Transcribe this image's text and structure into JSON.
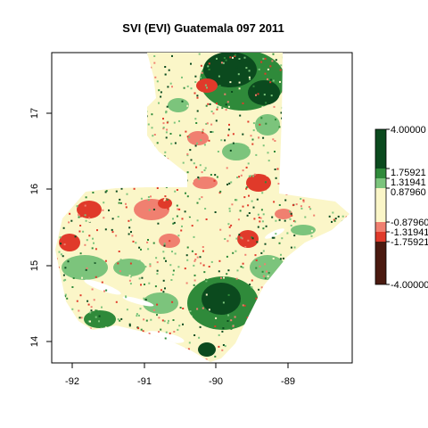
{
  "title": "SVI (EVI) Guatemala 097 2011",
  "map": {
    "x_ticks": [
      "-92",
      "-91",
      "-90",
      "-89"
    ],
    "y_ticks": [
      "14",
      "15",
      "16",
      "17"
    ],
    "x_range": [
      -92.25,
      -88.15
    ],
    "y_range": [
      13.75,
      17.82
    ]
  },
  "legend": {
    "labels": [
      "4.00000",
      "1.75921",
      "1.31941",
      "0.87960",
      "-0.87960",
      "-1.31941",
      "-1.75921",
      "-4.00000"
    ],
    "colors": {
      "dark_green": "#0b4a1e",
      "green": "#2f8a3a",
      "light_green": "#7cc47c",
      "pale_yellow": "#fbf6c8",
      "light_red": "#f08070",
      "red": "#e03a2a",
      "dark_red": "#4a1a10"
    }
  }
}
